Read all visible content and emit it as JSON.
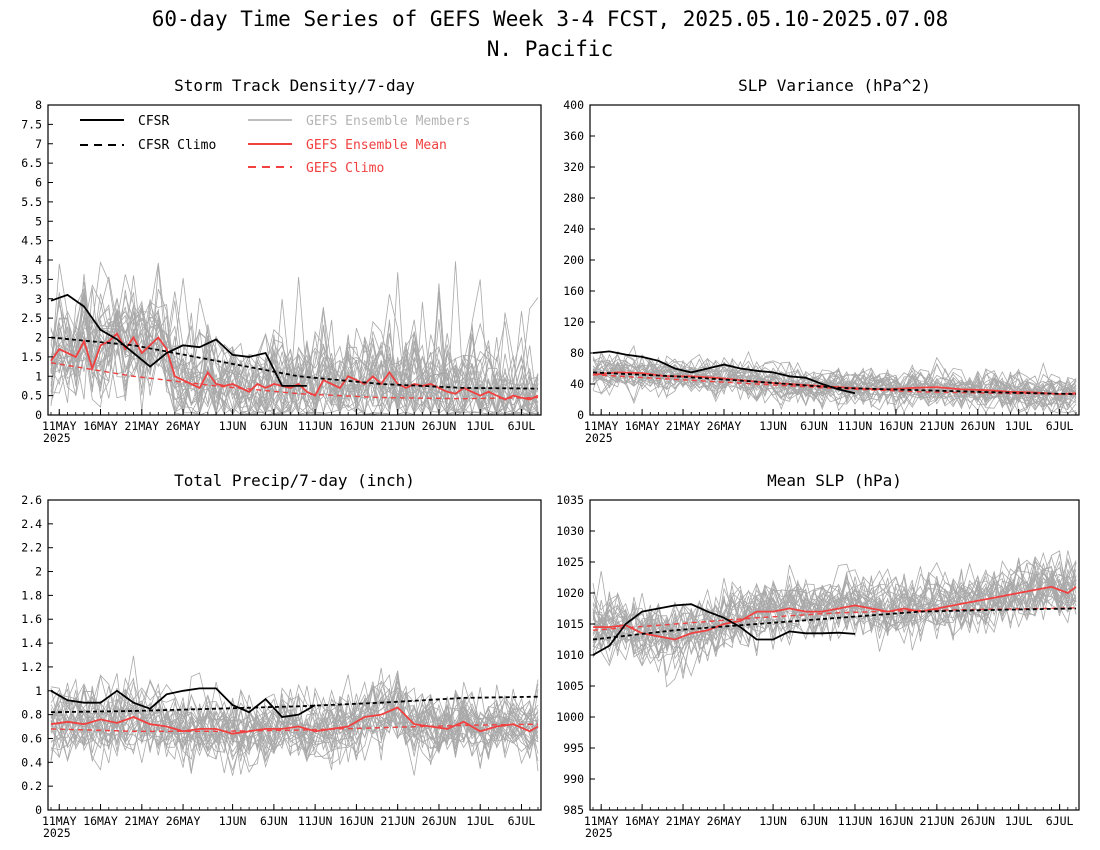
{
  "figure": {
    "title_line1": "60-day Time Series of GEFS Week 3-4 FCST, 2025.05.10-2025.07.08",
    "title_line2": "N. Pacific"
  },
  "legend": {
    "cfsr": "CFSR",
    "cfsr_climo": "CFSR Climo",
    "gefs_members": "GEFS Ensemble Members",
    "gefs_mean": "GEFS Ensemble Mean",
    "gefs_climo": "GEFS Climo"
  },
  "colors": {
    "cfsr": "#000000",
    "members": "#a9a9a9",
    "gefs_mean": "#f04040",
    "gefs_climo": "#f04040",
    "members_legend_text": "#b4b4b4"
  },
  "x_axis": {
    "day_count": 60,
    "tick_labels": [
      "11MAY",
      "16MAY",
      "21MAY",
      "26MAY",
      "1JUN",
      "6JUN",
      "11JUN",
      "16JUN",
      "21JUN",
      "26JUN",
      "1JUL",
      "6JUL"
    ],
    "tick_days": [
      1,
      6,
      11,
      16,
      22,
      27,
      32,
      37,
      42,
      47,
      52,
      57
    ],
    "year_label": "2025"
  },
  "chart_data": [
    {
      "type": "line",
      "title": "Storm Track Density/7-day",
      "ylim": [
        0,
        8
      ],
      "yticks": [
        "0",
        "0.5",
        "1",
        "1.5",
        "2",
        "2.5",
        "3",
        "3.5",
        "4",
        "4.5",
        "5",
        "5.5",
        "6",
        "6.5",
        "7",
        "7.5",
        "8"
      ],
      "member_count": 30,
      "series": [
        {
          "name": "CFSR",
          "x": [
            0,
            2,
            4,
            6,
            8,
            10,
            12,
            14,
            16,
            18,
            20,
            22,
            24,
            26,
            28,
            29,
            31
          ],
          "values": [
            2.95,
            3.1,
            2.8,
            2.2,
            1.95,
            1.6,
            1.25,
            1.6,
            1.8,
            1.75,
            1.95,
            1.55,
            1.5,
            1.6,
            0.75,
            0.75,
            0.75
          ]
        },
        {
          "name": "CFSR Climo",
          "x": [
            0,
            10,
            20,
            30,
            40,
            50,
            59
          ],
          "values": [
            2.0,
            1.8,
            1.4,
            1.0,
            0.8,
            0.7,
            0.68
          ]
        },
        {
          "name": "GEFS Ensemble Mean",
          "x": [
            0,
            1,
            2,
            3,
            4,
            5,
            6,
            7,
            8,
            9,
            10,
            11,
            12,
            13,
            14,
            15,
            16,
            17,
            18,
            19,
            20,
            21,
            22,
            23,
            24,
            25,
            26,
            27,
            28,
            29,
            30,
            31,
            32,
            33,
            34,
            35,
            36,
            37,
            38,
            39,
            40,
            41,
            42,
            43,
            44,
            45,
            46,
            47,
            48,
            49,
            50,
            51,
            52,
            53,
            54,
            55,
            56,
            57,
            58,
            59
          ],
          "values": [
            1.4,
            1.7,
            1.6,
            1.5,
            1.9,
            1.2,
            1.8,
            1.9,
            2.1,
            1.7,
            2.0,
            1.6,
            1.8,
            2.0,
            1.7,
            1.0,
            0.9,
            0.8,
            0.7,
            1.1,
            0.8,
            0.75,
            0.8,
            0.7,
            0.6,
            0.8,
            0.7,
            0.8,
            0.75,
            0.7,
            0.8,
            0.6,
            0.5,
            0.9,
            0.8,
            0.7,
            1.0,
            0.9,
            0.8,
            1.0,
            0.8,
            1.1,
            0.8,
            0.7,
            0.8,
            0.75,
            0.8,
            0.7,
            0.6,
            0.55,
            0.7,
            0.6,
            0.5,
            0.6,
            0.5,
            0.4,
            0.5,
            0.45,
            0.4,
            0.5
          ]
        },
        {
          "name": "GEFS Climo",
          "x": [
            0,
            10,
            20,
            30,
            40,
            50,
            59
          ],
          "values": [
            1.35,
            1.0,
            0.75,
            0.55,
            0.45,
            0.42,
            0.45
          ]
        }
      ]
    },
    {
      "type": "line",
      "title": "SLP Variance (hPa^2)",
      "ylim": [
        0,
        400
      ],
      "yticks": [
        "0",
        "40",
        "80",
        "120",
        "160",
        "200",
        "240",
        "280",
        "320",
        "360",
        "400"
      ],
      "member_count": 30,
      "series": [
        {
          "name": "CFSR",
          "x": [
            0,
            2,
            4,
            6,
            8,
            10,
            12,
            14,
            16,
            18,
            20,
            22,
            24,
            26,
            28,
            30,
            32
          ],
          "values": [
            80,
            82,
            78,
            75,
            70,
            60,
            55,
            60,
            65,
            60,
            57,
            55,
            50,
            48,
            40,
            33,
            28
          ]
        },
        {
          "name": "CFSR Climo",
          "x": [
            0,
            10,
            20,
            30,
            40,
            50,
            59
          ],
          "values": [
            55,
            50,
            43,
            35,
            32,
            29,
            27
          ]
        },
        {
          "name": "GEFS Ensemble Mean",
          "x": [
            0,
            3,
            6,
            9,
            12,
            15,
            18,
            21,
            24,
            27,
            30,
            33,
            36,
            39,
            42,
            45,
            48,
            51,
            54,
            57,
            59
          ],
          "values": [
            52,
            55,
            54,
            50,
            50,
            48,
            45,
            42,
            40,
            38,
            36,
            34,
            33,
            35,
            36,
            33,
            32,
            30,
            29,
            27,
            28
          ]
        },
        {
          "name": "GEFS Climo",
          "x": [
            0,
            10,
            20,
            30,
            40,
            50,
            59
          ],
          "values": [
            52,
            46,
            40,
            34,
            30,
            28,
            27
          ]
        }
      ]
    },
    {
      "type": "line",
      "title": "Total Precip/7-day (inch)",
      "ylim": [
        0,
        2.6
      ],
      "yticks": [
        "0",
        "0.2",
        "0.4",
        "0.6",
        "0.8",
        "1",
        "1.2",
        "1.4",
        "1.6",
        "1.8",
        "2",
        "2.2",
        "2.4",
        "2.6"
      ],
      "member_count": 30,
      "series": [
        {
          "name": "CFSR",
          "x": [
            0,
            2,
            4,
            6,
            8,
            10,
            12,
            14,
            16,
            18,
            20,
            22,
            24,
            26,
            28,
            30,
            32
          ],
          "values": [
            1.0,
            0.92,
            0.9,
            0.9,
            1.0,
            0.9,
            0.85,
            0.97,
            1.0,
            1.02,
            1.02,
            0.88,
            0.82,
            0.93,
            0.78,
            0.8,
            0.88
          ]
        },
        {
          "name": "CFSR Climo",
          "x": [
            0,
            10,
            20,
            30,
            40,
            50,
            59
          ],
          "values": [
            0.82,
            0.83,
            0.85,
            0.87,
            0.9,
            0.94,
            0.95
          ]
        },
        {
          "name": "GEFS Ensemble Mean",
          "x": [
            0,
            2,
            4,
            6,
            8,
            10,
            12,
            14,
            16,
            18,
            20,
            22,
            24,
            26,
            28,
            30,
            32,
            34,
            36,
            38,
            40,
            42,
            44,
            46,
            48,
            50,
            52,
            54,
            56,
            58,
            59
          ],
          "values": [
            0.72,
            0.74,
            0.72,
            0.76,
            0.73,
            0.78,
            0.72,
            0.7,
            0.66,
            0.68,
            0.68,
            0.64,
            0.66,
            0.68,
            0.68,
            0.7,
            0.66,
            0.68,
            0.7,
            0.78,
            0.8,
            0.86,
            0.72,
            0.7,
            0.68,
            0.74,
            0.66,
            0.7,
            0.72,
            0.66,
            0.7
          ]
        },
        {
          "name": "GEFS Climo",
          "x": [
            0,
            10,
            20,
            30,
            40,
            50,
            59
          ],
          "values": [
            0.68,
            0.66,
            0.66,
            0.67,
            0.69,
            0.71,
            0.72
          ]
        }
      ]
    },
    {
      "type": "line",
      "title": "Mean SLP (hPa)",
      "ylim": [
        985,
        1035
      ],
      "yticks": [
        "985",
        "990",
        "995",
        "1000",
        "1005",
        "1010",
        "1015",
        "1020",
        "1025",
        "1030",
        "1035"
      ],
      "member_count": 30,
      "series": [
        {
          "name": "CFSR",
          "x": [
            0,
            2,
            4,
            6,
            8,
            10,
            12,
            14,
            16,
            18,
            20,
            22,
            24,
            26,
            28,
            30,
            32
          ],
          "values": [
            1010,
            1011.5,
            1015,
            1017,
            1017.5,
            1018,
            1018.2,
            1017,
            1016,
            1014.5,
            1012.5,
            1012.5,
            1013.8,
            1013.5,
            1013.5,
            1013.6,
            1013.4
          ]
        },
        {
          "name": "CFSR Climo",
          "x": [
            0,
            10,
            20,
            30,
            40,
            50,
            59
          ],
          "values": [
            1012.5,
            1014,
            1015,
            1016,
            1017,
            1017.3,
            1017.5
          ]
        },
        {
          "name": "GEFS Ensemble Mean",
          "x": [
            0,
            2,
            4,
            6,
            8,
            10,
            12,
            14,
            16,
            18,
            20,
            22,
            24,
            26,
            28,
            30,
            32,
            34,
            36,
            38,
            40,
            42,
            44,
            46,
            48,
            50,
            52,
            54,
            56,
            58,
            59
          ],
          "values": [
            1014.5,
            1014.5,
            1014.8,
            1013.5,
            1013,
            1012.5,
            1013.5,
            1014,
            1015,
            1015.5,
            1017,
            1017,
            1017.5,
            1017,
            1017,
            1017.5,
            1018,
            1017.5,
            1017,
            1017.5,
            1017,
            1017.5,
            1018,
            1018.5,
            1019,
            1019.5,
            1020,
            1020.5,
            1021,
            1020,
            1021
          ]
        },
        {
          "name": "GEFS Climo",
          "x": [
            0,
            10,
            20,
            30,
            40,
            50,
            59
          ],
          "values": [
            1014,
            1015,
            1016,
            1016.8,
            1017.2,
            1017.4,
            1017.6
          ]
        }
      ]
    }
  ]
}
